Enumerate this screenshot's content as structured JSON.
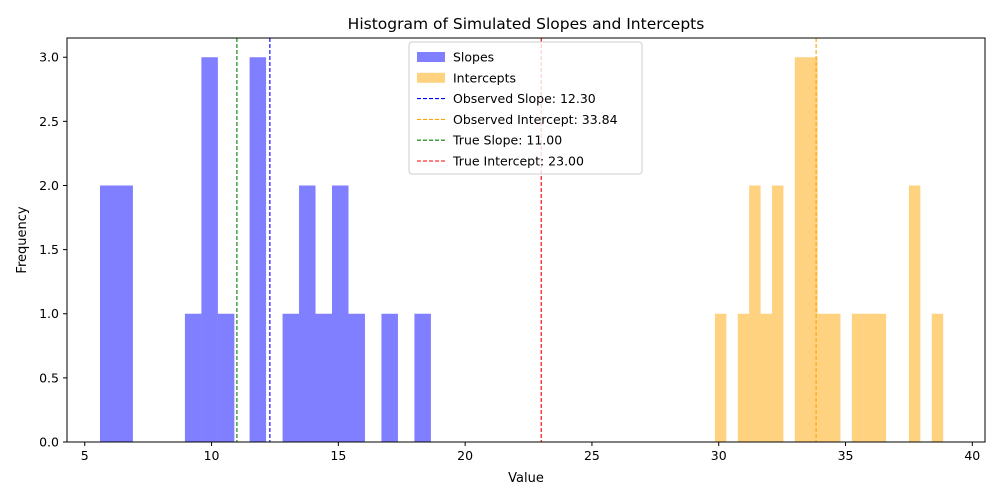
{
  "chart_data": {
    "type": "histogram",
    "title": "Histogram of Simulated Slopes and Intercepts",
    "xlabel": "Value",
    "ylabel": "Frequency",
    "xlim": [
      4.3,
      40.5
    ],
    "ylim": [
      0,
      3.15
    ],
    "x_ticks": [
      "5",
      "10",
      "15",
      "20",
      "25",
      "30",
      "35",
      "40"
    ],
    "y_ticks": [
      "0.0",
      "0.5",
      "1.0",
      "1.5",
      "2.0",
      "2.5",
      "3.0"
    ],
    "legend_position": "upper-center",
    "series": [
      {
        "name": "Slopes",
        "color": "#0000ff",
        "opacity": 0.5,
        "bins": [
          {
            "start": 5.6,
            "end": 6.25,
            "count": 2
          },
          {
            "start": 6.25,
            "end": 6.9,
            "count": 2
          },
          {
            "start": 8.95,
            "end": 9.6,
            "count": 1
          },
          {
            "start": 9.6,
            "end": 10.25,
            "count": 3
          },
          {
            "start": 10.25,
            "end": 10.9,
            "count": 1
          },
          {
            "start": 11.5,
            "end": 12.15,
            "count": 3
          },
          {
            "start": 12.8,
            "end": 13.45,
            "count": 1
          },
          {
            "start": 13.45,
            "end": 14.1,
            "count": 2
          },
          {
            "start": 14.1,
            "end": 14.75,
            "count": 1
          },
          {
            "start": 14.75,
            "end": 15.4,
            "count": 2
          },
          {
            "start": 15.4,
            "end": 16.05,
            "count": 1
          },
          {
            "start": 16.7,
            "end": 17.35,
            "count": 1
          },
          {
            "start": 18.0,
            "end": 18.65,
            "count": 1
          }
        ]
      },
      {
        "name": "Intercepts",
        "color": "#ffa500",
        "opacity": 0.5,
        "bins": [
          {
            "start": 29.85,
            "end": 30.3,
            "count": 1
          },
          {
            "start": 30.75,
            "end": 31.2,
            "count": 1
          },
          {
            "start": 31.2,
            "end": 31.65,
            "count": 2
          },
          {
            "start": 31.65,
            "end": 32.1,
            "count": 1
          },
          {
            "start": 32.1,
            "end": 32.55,
            "count": 2
          },
          {
            "start": 33.0,
            "end": 33.45,
            "count": 3
          },
          {
            "start": 33.45,
            "end": 33.9,
            "count": 3
          },
          {
            "start": 33.9,
            "end": 34.35,
            "count": 1
          },
          {
            "start": 34.35,
            "end": 34.8,
            "count": 1
          },
          {
            "start": 35.25,
            "end": 35.7,
            "count": 1
          },
          {
            "start": 35.7,
            "end": 36.15,
            "count": 1
          },
          {
            "start": 36.15,
            "end": 36.6,
            "count": 1
          },
          {
            "start": 37.5,
            "end": 37.95,
            "count": 2
          },
          {
            "start": 38.4,
            "end": 38.85,
            "count": 1
          }
        ]
      }
    ],
    "reference_lines": [
      {
        "name": "Observed Slope: 12.30",
        "x": 12.3,
        "color": "#0000ff"
      },
      {
        "name": "Observed Intercept: 33.84",
        "x": 33.84,
        "color": "#ffa500"
      },
      {
        "name": "True Slope: 11.00",
        "x": 11.0,
        "color": "#008000"
      },
      {
        "name": "True Intercept: 23.00",
        "x": 23.0,
        "color": "#ff0000"
      }
    ]
  }
}
